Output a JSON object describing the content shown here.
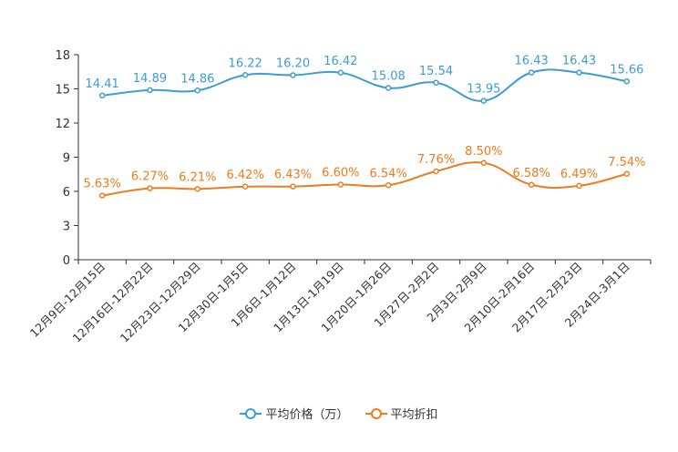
{
  "chart_data": {
    "type": "line",
    "categories": [
      "12月9日-12月15日",
      "12月16日-12月22日",
      "12月23日-12月29日",
      "12月30日-1月5日",
      "1月6日-1月12日",
      "1月13日-1月19日",
      "1月20日-1月26日",
      "1月27日-2月2日",
      "2月3日-2月9日",
      "2月10日-2月16日",
      "2月17日-2月23日",
      "2月24日-3月1日"
    ],
    "series": [
      {
        "name": "平均价格（万）",
        "color": "#3d9dd1",
        "values": [
          14.41,
          14.89,
          14.86,
          16.22,
          16.2,
          16.42,
          15.08,
          15.54,
          13.95,
          16.43,
          16.43,
          15.66
        ],
        "labels": [
          "14.41",
          "14.89",
          "14.86",
          "16.22",
          "16.20",
          "16.42",
          "15.08",
          "15.54",
          "13.95",
          "16.43",
          "16.43",
          "15.66"
        ]
      },
      {
        "name": "平均折扣",
        "color": "#f07b1d",
        "values": [
          5.63,
          6.27,
          6.21,
          6.42,
          6.43,
          6.6,
          6.54,
          7.76,
          8.5,
          6.58,
          6.49,
          7.54
        ],
        "labels": [
          "5.63%",
          "6.27%",
          "6.21%",
          "6.42%",
          "6.43%",
          "6.60%",
          "6.54%",
          "7.76%",
          "8.50%",
          "6.58%",
          "6.49%",
          "7.54%"
        ]
      }
    ],
    "yticks": [
      "0",
      "3",
      "6",
      "9",
      "12",
      "15",
      "18"
    ],
    "ylim": [
      0,
      18
    ],
    "title": "",
    "xlabel": "",
    "ylabel": "",
    "legend_position": "bottom"
  },
  "legend": {
    "items": [
      "平均价格（万）",
      "平均折扣"
    ]
  }
}
